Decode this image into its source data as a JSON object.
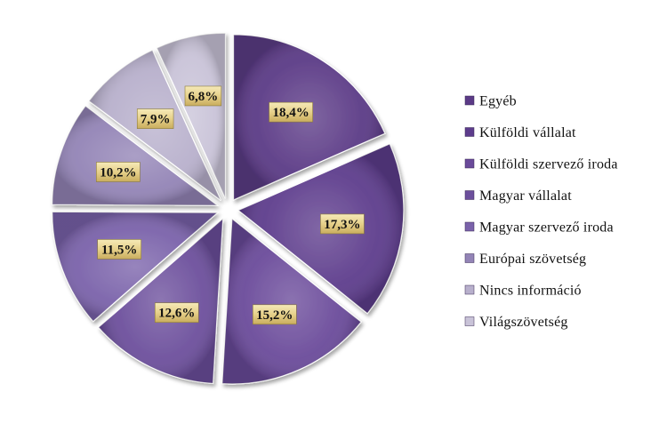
{
  "chart_data": {
    "type": "pie",
    "exploded": true,
    "start_angle_deg": 0,
    "direction": "clockwise",
    "legend_position": "right",
    "slices": [
      {
        "label": "Egyéb",
        "value": 18.4,
        "display": "18,4%",
        "color": "#5b3a86"
      },
      {
        "label": "Külföldi vállalat",
        "value": 17.3,
        "display": "17,3%",
        "color": "#5d3c8c"
      },
      {
        "label": "Külföldi szervező iroda",
        "value": 15.2,
        "display": "15,2%",
        "color": "#6a4a9a"
      },
      {
        "label": "Magyar vállalat",
        "value": 12.6,
        "display": "12,6%",
        "color": "#6c4f9c"
      },
      {
        "label": "Magyar szervező iroda",
        "value": 11.5,
        "display": "11,5%",
        "color": "#7a62aa"
      },
      {
        "label": "Európai szövetség",
        "value": 10.2,
        "display": "10,2%",
        "color": "#9384b6"
      },
      {
        "label": "Nincs információ",
        "value": 7.9,
        "display": "7,9%",
        "color": "#b8b0cc"
      },
      {
        "label": "Világszövetség",
        "value": 6.8,
        "display": "6,8%",
        "color": "#c9c3d8"
      }
    ]
  }
}
